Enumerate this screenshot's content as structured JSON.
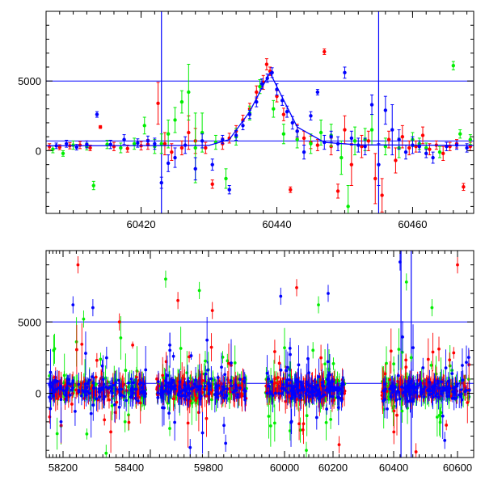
{
  "chart_data": [
    {
      "type": "scatter",
      "panel": "top",
      "x_range": [
        60406,
        60469
      ],
      "y_range": [
        -4500,
        10000
      ],
      "x_ticks": [
        60420,
        60440,
        60460
      ],
      "x_tick_labels": [
        "60420",
        "60440",
        "60460"
      ],
      "y_ticks": [
        0,
        5000
      ],
      "y_tick_labels": [
        "0",
        "5000"
      ],
      "hlines": [
        5000,
        700
      ],
      "vlines": [
        60423,
        60455
      ],
      "trend": {
        "x": [
          60406,
          60430,
          60433,
          60436,
          60438,
          60439,
          60440,
          60443,
          60447,
          60452,
          60469
        ],
        "y": [
          350,
          380,
          800,
          2800,
          4700,
          5600,
          4600,
          1700,
          600,
          420,
          380
        ]
      },
      "series_colors": [
        "#ff0000",
        "#00ee00",
        "#0000ff"
      ],
      "points": [
        [
          [
            60406.5,
            300,
            200
          ],
          [
            60408,
            250,
            180
          ],
          [
            60409.5,
            350,
            220
          ],
          [
            60411,
            400,
            250
          ],
          [
            60412.5,
            200,
            200
          ],
          [
            60414,
            1700,
            100
          ],
          [
            60416,
            300,
            300
          ],
          [
            60418,
            150,
            250
          ],
          [
            60420,
            350,
            300
          ],
          [
            60421,
            450,
            350
          ],
          [
            60422.5,
            3400,
            1500
          ],
          [
            60423.5,
            500,
            800
          ],
          [
            60424.5,
            -100,
            600
          ],
          [
            60426,
            200,
            500
          ],
          [
            60427,
            1300,
            1200
          ],
          [
            60428,
            700,
            900
          ],
          [
            60429.5,
            200,
            400
          ],
          [
            60430.5,
            -2400,
            300
          ],
          [
            60432,
            500,
            400
          ],
          [
            60433,
            900,
            350
          ],
          [
            60434,
            1400,
            400
          ],
          [
            60435,
            2200,
            350
          ],
          [
            60436,
            3000,
            400
          ],
          [
            60437,
            4200,
            450
          ],
          [
            60438,
            4900,
            500
          ],
          [
            60438.5,
            6200,
            400
          ],
          [
            60439,
            5700,
            300
          ],
          [
            60440,
            3900,
            400
          ],
          [
            60441,
            2600,
            450
          ],
          [
            60442,
            -2800,
            200
          ],
          [
            60443,
            1400,
            500
          ],
          [
            60444,
            900,
            500
          ],
          [
            60445,
            600,
            450
          ],
          [
            60446,
            400,
            400
          ],
          [
            60447,
            7100,
            200
          ],
          [
            60448,
            300,
            600
          ],
          [
            60449,
            -2900,
            500
          ],
          [
            60450,
            1500,
            1000
          ],
          [
            60451,
            -1000,
            1500
          ],
          [
            60452.5,
            300,
            800
          ],
          [
            60453.5,
            700,
            700
          ],
          [
            60454.5,
            -2000,
            1800
          ],
          [
            60455.5,
            -3200,
            1200
          ],
          [
            60456.5,
            800,
            600
          ],
          [
            60457.5,
            -700,
            900
          ],
          [
            60458.5,
            1000,
            800
          ],
          [
            60459.5,
            200,
            500
          ],
          [
            60460.5,
            300,
            400
          ],
          [
            60461.5,
            1100,
            600
          ],
          [
            60462.5,
            100,
            400
          ],
          [
            60463.5,
            400,
            300
          ],
          [
            60464.5,
            -200,
            500
          ],
          [
            60465.5,
            300,
            300
          ],
          [
            60466.5,
            500,
            300
          ],
          [
            60467.5,
            -2600,
            250
          ],
          [
            60468.5,
            300,
            300
          ]
        ],
        [
          [
            60407,
            100,
            250
          ],
          [
            60408.5,
            -200,
            200
          ],
          [
            60410,
            400,
            300
          ],
          [
            60412,
            300,
            250
          ],
          [
            60413,
            -2500,
            300
          ],
          [
            60415,
            450,
            300
          ],
          [
            60417,
            200,
            350
          ],
          [
            60419,
            500,
            400
          ],
          [
            60420.5,
            1800,
            600
          ],
          [
            60422,
            300,
            500
          ],
          [
            60423,
            500,
            700
          ],
          [
            60424,
            1200,
            1000
          ],
          [
            60425,
            2200,
            900
          ],
          [
            60426,
            3500,
            800
          ],
          [
            60427,
            4200,
            2000
          ],
          [
            60428,
            200,
            2500
          ],
          [
            60429,
            1300,
            1400
          ],
          [
            60431,
            600,
            500
          ],
          [
            60432.5,
            -2000,
            700
          ],
          [
            60434,
            1000,
            600
          ],
          [
            60436,
            2700,
            500
          ],
          [
            60437.5,
            4600,
            500
          ],
          [
            60439.5,
            3000,
            600
          ],
          [
            60441,
            1200,
            700
          ],
          [
            60443,
            800,
            600
          ],
          [
            60445,
            500,
            700
          ],
          [
            60446.5,
            1300,
            900
          ],
          [
            60448,
            1100,
            800
          ],
          [
            60449.5,
            -500,
            1200
          ],
          [
            60450.5,
            -4000,
            1500
          ],
          [
            60451.5,
            700,
            1000
          ],
          [
            60453,
            800,
            800
          ],
          [
            60454,
            1500,
            1100
          ],
          [
            60456,
            300,
            600
          ],
          [
            60458,
            200,
            700
          ],
          [
            60460,
            800,
            500
          ],
          [
            60461,
            500,
            400
          ],
          [
            60462,
            200,
            350
          ],
          [
            60464,
            -100,
            400
          ],
          [
            60466,
            6100,
            300
          ],
          [
            60467,
            1200,
            300
          ],
          [
            60468.5,
            800,
            350
          ]
        ],
        [
          [
            60407.5,
            350,
            200
          ],
          [
            60409,
            500,
            250
          ],
          [
            60410.5,
            250,
            200
          ],
          [
            60412,
            450,
            250
          ],
          [
            60413.5,
            2600,
            200
          ],
          [
            60415.5,
            450,
            300
          ],
          [
            60417.5,
            800,
            350
          ],
          [
            60419.5,
            550,
            300
          ],
          [
            60421,
            700,
            350
          ],
          [
            60422,
            500,
            400
          ],
          [
            60423,
            -2300,
            400
          ],
          [
            60424,
            -900,
            600
          ],
          [
            60425,
            -500,
            700
          ],
          [
            60426.5,
            400,
            600
          ],
          [
            60428,
            -1300,
            800
          ],
          [
            60429,
            700,
            500
          ],
          [
            60430.5,
            -1000,
            400
          ],
          [
            60432,
            800,
            300
          ],
          [
            60433,
            -2800,
            300
          ],
          [
            60434,
            1100,
            350
          ],
          [
            60435,
            1800,
            300
          ],
          [
            60436,
            2600,
            300
          ],
          [
            60437,
            3500,
            350
          ],
          [
            60437.8,
            4800,
            350
          ],
          [
            60438.6,
            5200,
            300
          ],
          [
            60439.3,
            5600,
            350
          ],
          [
            60440,
            4400,
            400
          ],
          [
            60440.8,
            3600,
            350
          ],
          [
            60441.5,
            2800,
            400
          ],
          [
            60442.3,
            2000,
            450
          ],
          [
            60443,
            1400,
            400
          ],
          [
            60444,
            -100,
            500
          ],
          [
            60445,
            2500,
            300
          ],
          [
            60446,
            4200,
            200
          ],
          [
            60447,
            600,
            500
          ],
          [
            60448,
            1000,
            400
          ],
          [
            60449,
            500,
            500
          ],
          [
            60450,
            5600,
            400
          ],
          [
            60451,
            900,
            500
          ],
          [
            60452,
            400,
            500
          ],
          [
            60453,
            300,
            600
          ],
          [
            60454,
            3300,
            700
          ],
          [
            60455,
            -1000,
            1500
          ],
          [
            60456,
            2900,
            1000
          ],
          [
            60457,
            1500,
            1800
          ],
          [
            60458,
            800,
            700
          ],
          [
            60459,
            -100,
            500
          ],
          [
            60460,
            400,
            600
          ],
          [
            60461,
            300,
            400
          ],
          [
            60462,
            -200,
            300
          ],
          [
            60463,
            -500,
            400
          ],
          [
            60465,
            300,
            300
          ],
          [
            60466.5,
            400,
            300
          ],
          [
            60468,
            200,
            300
          ]
        ]
      ]
    },
    {
      "type": "scatter",
      "panel": "bottom",
      "x_ticks": [
        58200,
        58400,
        59800,
        60000,
        60200,
        60400,
        60600
      ],
      "x_tick_labels": [
        "58200",
        "58400",
        "59800",
        "60000",
        "60200",
        "60400",
        "60600"
      ],
      "y_ticks": [
        0,
        5000
      ],
      "y_tick_labels": [
        "0",
        "5000"
      ],
      "y_range": [
        -4500,
        10000
      ],
      "hlines": [
        5000,
        700
      ],
      "vlines": [
        60423,
        60455
      ],
      "segments": [
        {
          "x_range": [
            58120,
            58470
          ],
          "seed": 11,
          "n": 120,
          "outliers": [
            [
              58245,
              9000,
              0
            ],
            [
              58262,
              5200,
              1
            ],
            [
              58290,
              6000,
              2
            ],
            [
              58330,
              -4200,
              1
            ],
            [
              58370,
              5000,
              0
            ],
            [
              58230,
              6200,
              2
            ]
          ]
        },
        {
          "x_range": [
            59630,
            59900
          ],
          "seed": 23,
          "n": 130,
          "outliers": [
            [
              59660,
              8000,
              1
            ],
            [
              59700,
              6500,
              0
            ],
            [
              59740,
              -3800,
              2
            ],
            [
              59770,
              7200,
              1
            ],
            [
              59810,
              5800,
              0
            ],
            [
              59845,
              -3500,
              2
            ]
          ]
        },
        {
          "x_range": [
            59950,
            60240
          ],
          "seed": 37,
          "n": 140,
          "outliers": [
            [
              59990,
              6800,
              2
            ],
            [
              60050,
              7400,
              0
            ],
            [
              60090,
              -4000,
              1
            ],
            [
              60140,
              6200,
              1
            ],
            [
              60180,
              7000,
              2
            ],
            [
              60220,
              -3600,
              0
            ]
          ]
        },
        {
          "x_range": [
            60360,
            60615
          ],
          "seed": 53,
          "n": 130,
          "outliers": [
            [
              60420,
              9200,
              2
            ],
            [
              60440,
              7800,
              1
            ],
            [
              60470,
              -4100,
              0
            ],
            [
              60520,
              6000,
              1
            ],
            [
              60560,
              -3300,
              2
            ],
            [
              60600,
              9000,
              0
            ]
          ]
        }
      ]
    }
  ]
}
